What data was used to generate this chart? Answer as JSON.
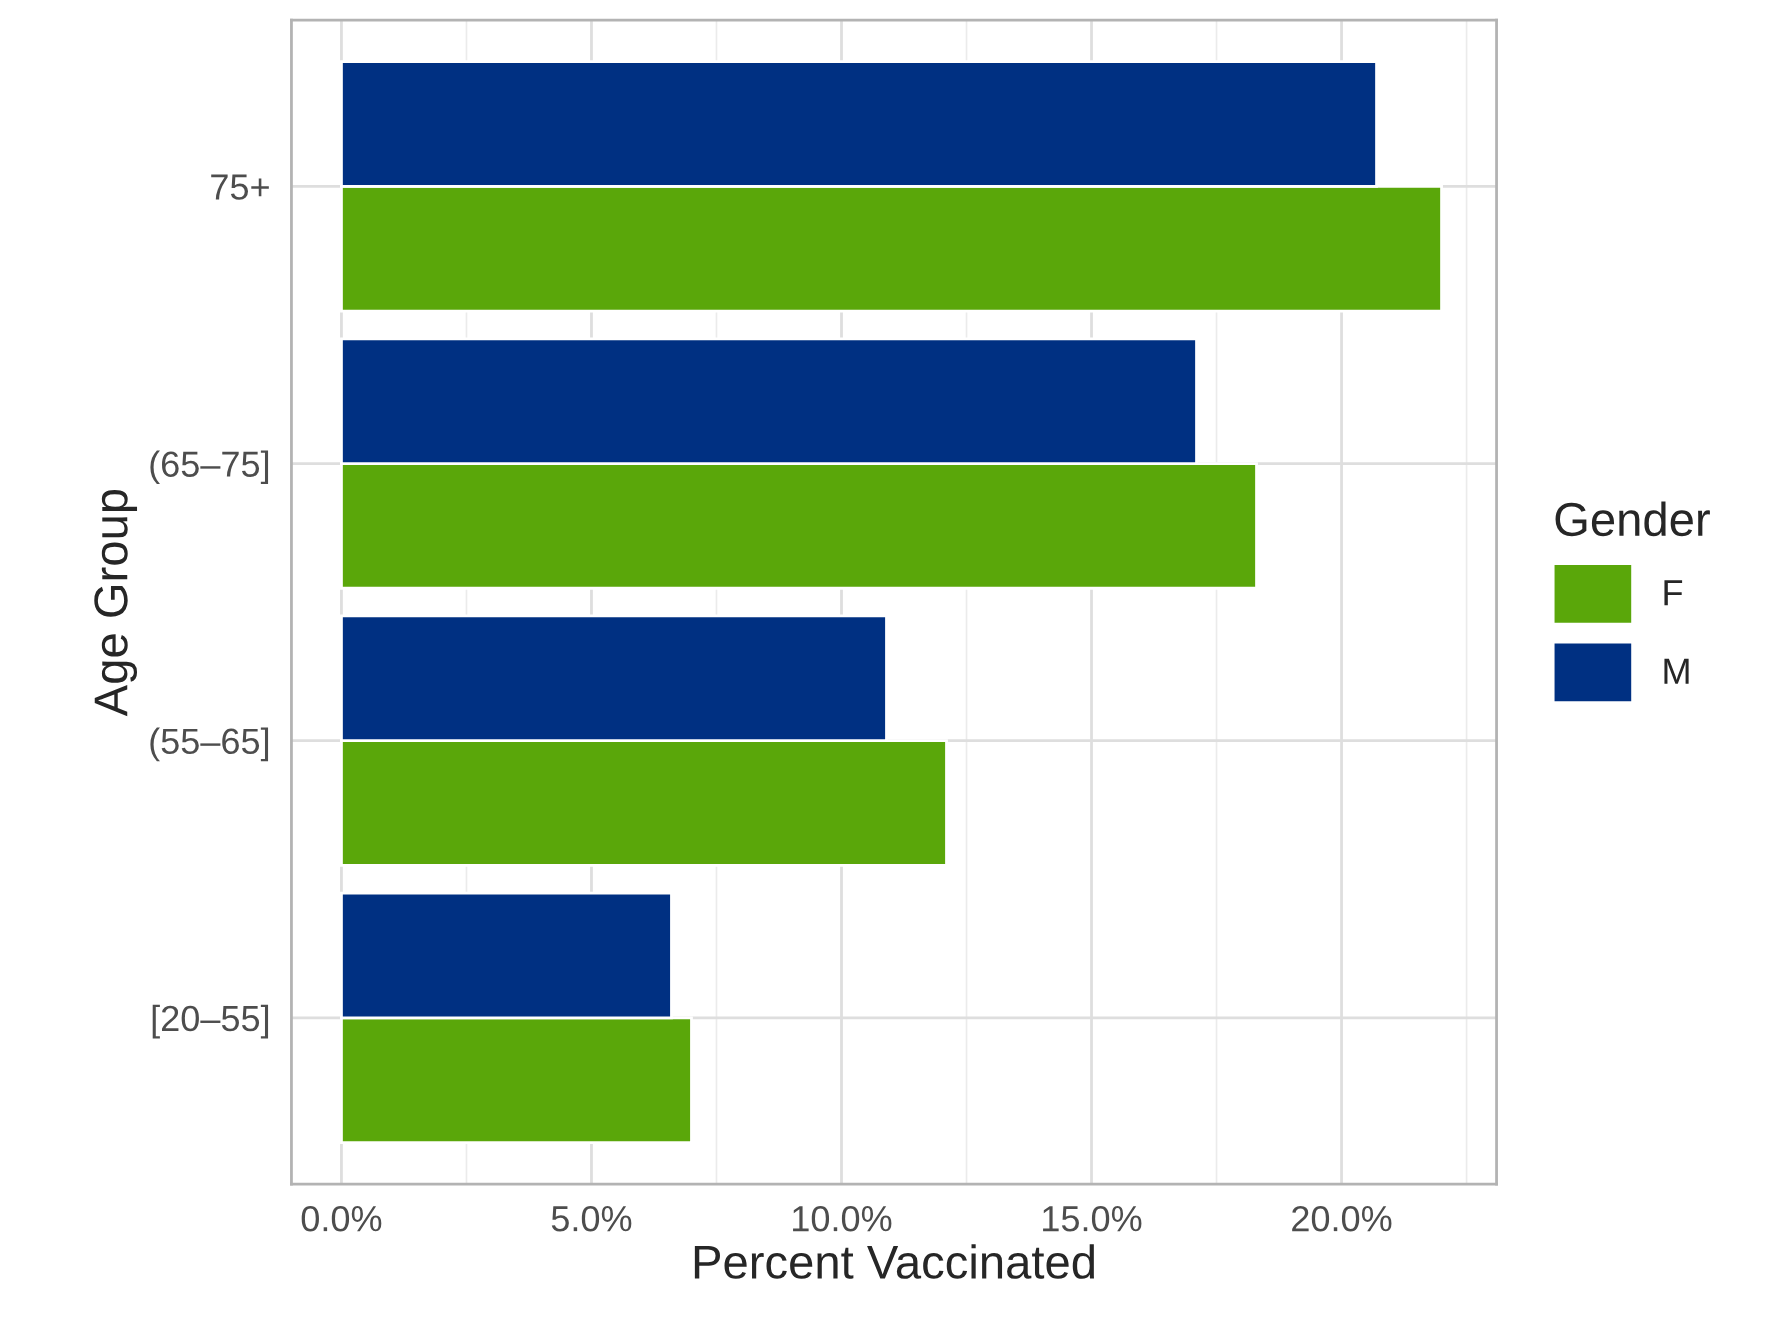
{
  "chart_data": {
    "type": "bar",
    "orientation": "horizontal",
    "xlabel": "Percent Vaccinated",
    "ylabel": "Age Group",
    "legend_title": "Gender",
    "legend": "right",
    "grid": true,
    "categories": [
      "75+",
      "(65–75]",
      "(55–65]",
      "[20–55]"
    ],
    "series": [
      {
        "name": "F",
        "color": "#5aa70a",
        "values": [
          22.0,
          18.3,
          12.1,
          7.0
        ]
      },
      {
        "name": "M",
        "color": "#003082",
        "values": [
          20.7,
          17.1,
          10.9,
          6.6
        ]
      }
    ],
    "xlim": [
      -1.0,
      23.1
    ],
    "xticks": [
      {
        "value": 0,
        "label": "0.0%"
      },
      {
        "value": 5,
        "label": "5.0%"
      },
      {
        "value": 10,
        "label": "10.0%"
      },
      {
        "value": 15,
        "label": "15.0%"
      },
      {
        "value": 20,
        "label": "20.0%"
      }
    ]
  }
}
